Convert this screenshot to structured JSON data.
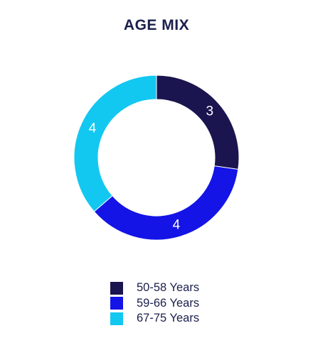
{
  "chart_data": {
    "type": "pie",
    "title": "AGE MIX",
    "categories": [
      "50-58 Years",
      "59-66 Years",
      "67-75 Years"
    ],
    "values": [
      3,
      4,
      4
    ],
    "colors": [
      "#1a144f",
      "#1414e6",
      "#12c8f0"
    ],
    "legend_position": "bottom",
    "donut": true
  }
}
